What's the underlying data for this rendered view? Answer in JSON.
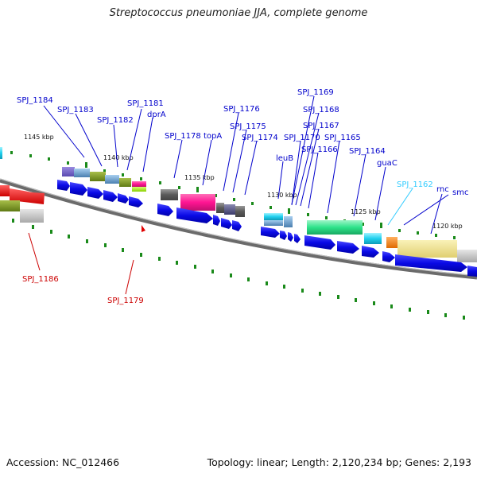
{
  "title": "Streptococcus pneumoniae JJA, complete genome",
  "footer": {
    "accession": "Accession: NC_012466",
    "topology": "Topology: linear; Length: 2,120,234 bp; Genes: 2,193"
  },
  "scale_labels": [
    "1145 kbp",
    "1140 kbp",
    "1135 kbp",
    "1130 kbp",
    "1125 kbp",
    "1120 kbp"
  ],
  "gene_labels": [
    {
      "text": "SPJ_1184",
      "color": "#0000cc"
    },
    {
      "text": "SPJ_1183",
      "color": "#0000cc"
    },
    {
      "text": "SPJ_1182",
      "color": "#0000cc"
    },
    {
      "text": "SPJ_1181",
      "color": "#0000cc"
    },
    {
      "text": "dprA",
      "color": "#0000cc"
    },
    {
      "text": "SPJ_1178",
      "color": "#0000cc"
    },
    {
      "text": "topA",
      "color": "#0000cc"
    },
    {
      "text": "SPJ_1176",
      "color": "#0000cc"
    },
    {
      "text": "SPJ_1175",
      "color": "#0000cc"
    },
    {
      "text": "SPJ_1174",
      "color": "#0000cc"
    },
    {
      "text": "SPJ_1169",
      "color": "#0000cc"
    },
    {
      "text": "SPJ_1168",
      "color": "#0000cc"
    },
    {
      "text": "SPJ_1167",
      "color": "#0000cc"
    },
    {
      "text": "SPJ_1170",
      "color": "#0000cc"
    },
    {
      "text": "SPJ_1165",
      "color": "#0000cc"
    },
    {
      "text": "SPJ_1166",
      "color": "#0000cc"
    },
    {
      "text": "SPJ_1164",
      "color": "#0000cc"
    },
    {
      "text": "leuB",
      "color": "#0000cc"
    },
    {
      "text": "guaC",
      "color": "#0000cc"
    },
    {
      "text": "SPJ_1162",
      "color": "#33ccff"
    },
    {
      "text": "rnc",
      "color": "#0000cc"
    },
    {
      "text": "smc",
      "color": "#0000cc"
    },
    {
      "text": "SPJ_1186",
      "color": "#cc0000"
    },
    {
      "text": "SPJ_1179",
      "color": "#cc0000"
    }
  ],
  "colors": {
    "backbone": "#6b6b6b",
    "cds_arrow": "#0a0ae6",
    "tick": "#1a8a1a",
    "label_blue": "#0000cc",
    "label_red": "#cc0000",
    "label_cyan": "#33ccff",
    "scale_text": "#111111"
  }
}
